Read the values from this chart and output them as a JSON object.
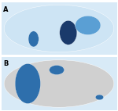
{
  "panel_a_label": "A",
  "panel_b_label": "B",
  "bg_color": "#ffffff",
  "map_ocean_color": "#ffffff",
  "panel_a_colors": {
    "very_high": "#1a3a6b",
    "high": "#2e6fac",
    "medium_high": "#5a9fd4",
    "medium": "#93c4e8",
    "low": "#cde4f4",
    "no_data": "#b0b0b0",
    "grey_data": "#d0d0d0"
  },
  "panel_b_colors": {
    "introduced": "#2e6fac",
    "pilot": "#93c4e8",
    "not_introduced": "#d0d0d0"
  },
  "figsize": [
    1.5,
    1.42
  ],
  "dpi": 100
}
